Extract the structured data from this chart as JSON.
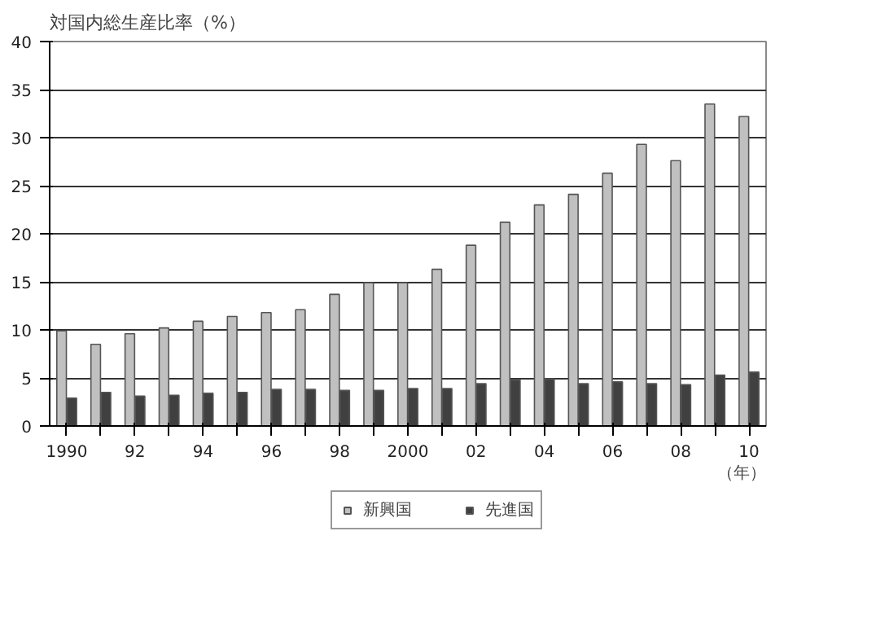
{
  "chart_data": {
    "type": "bar",
    "ylabel": "対国内総生産比率（%）",
    "xlabel": "（年）",
    "categories": [
      "1990",
      null,
      "92",
      null,
      "94",
      null,
      "96",
      null,
      "98",
      null,
      "2000",
      null,
      "02",
      null,
      "04",
      null,
      "06",
      null,
      "08",
      null,
      "10"
    ],
    "series": [
      {
        "name": "新興国",
        "color": "#c0c0c0",
        "values": [
          9.9,
          8.5,
          9.6,
          10.2,
          10.9,
          11.4,
          11.8,
          12.1,
          13.7,
          14.9,
          14.9,
          16.3,
          18.8,
          21.2,
          23.0,
          24.1,
          26.3,
          29.3,
          27.6,
          33.5,
          32.2
        ]
      },
      {
        "name": "先進国",
        "color": "#404040",
        "values": [
          2.9,
          3.5,
          3.1,
          3.2,
          3.4,
          3.5,
          3.8,
          3.8,
          3.7,
          3.7,
          3.9,
          3.9,
          4.4,
          4.8,
          4.9,
          4.4,
          4.6,
          4.4,
          4.3,
          5.3,
          5.6
        ]
      }
    ],
    "ylim": [
      0,
      40
    ],
    "yticks": [
      0,
      5,
      10,
      15,
      20,
      25,
      30,
      35,
      40
    ],
    "grid": "y",
    "legend": "bottom"
  }
}
